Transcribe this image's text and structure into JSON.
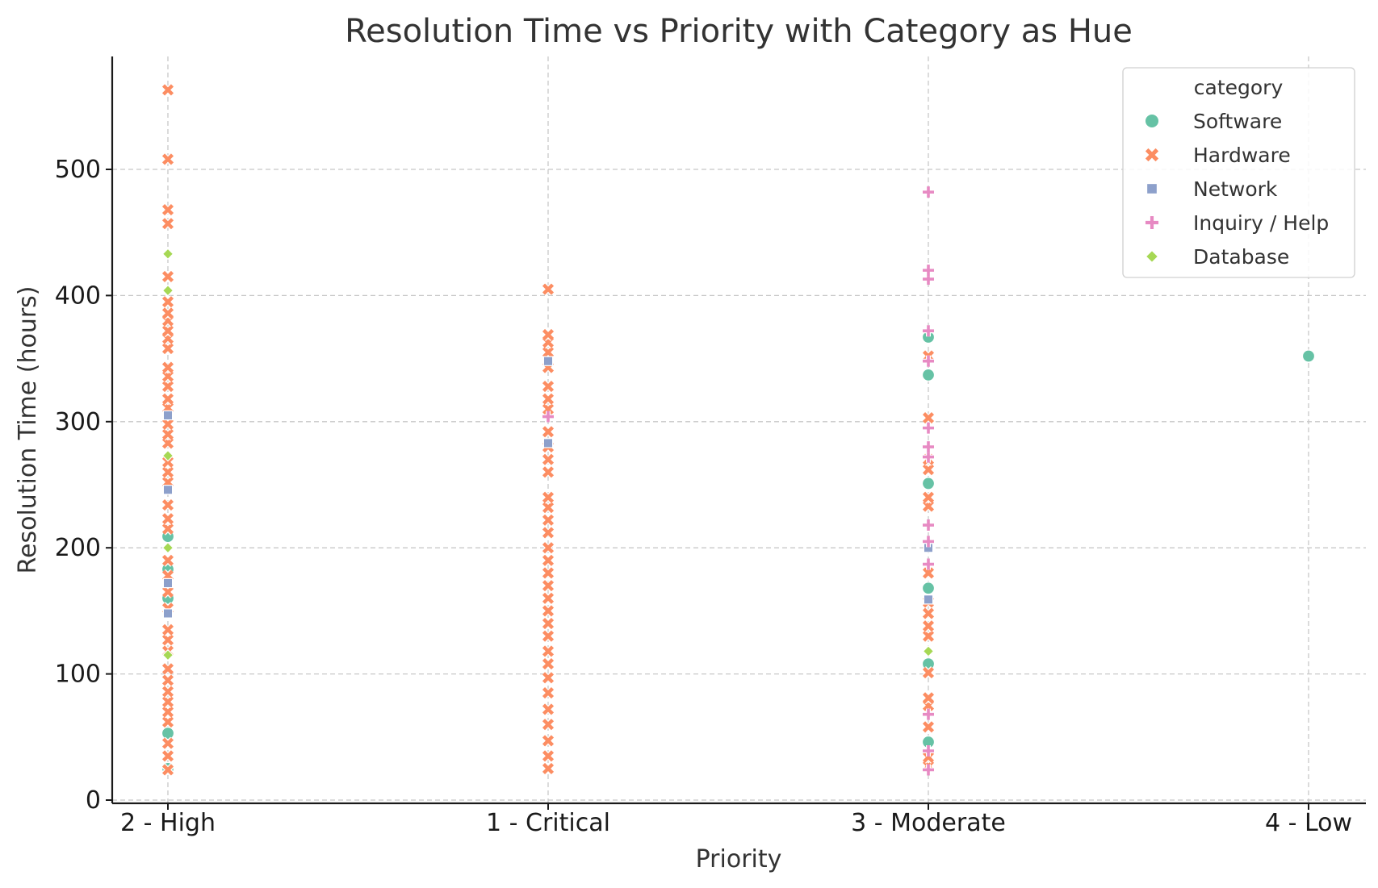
{
  "chart_data": {
    "type": "scatter",
    "title": "Resolution Time vs Priority with Category as Hue",
    "xlabel": "Priority",
    "ylabel": "Resolution Time (hours)",
    "x_categories": [
      "2 - High",
      "1 - Critical",
      "3 - Moderate",
      "4 - Low"
    ],
    "y_ticks": [
      0,
      100,
      200,
      300,
      400,
      500
    ],
    "ylim": [
      -5,
      590
    ],
    "grid": true,
    "legend": {
      "title": "category",
      "placement": "top-right"
    },
    "series": [
      {
        "name": "Software",
        "marker": "circle",
        "color": "#66c2a5",
        "points": [
          {
            "x": "2 - High",
            "y": 25
          },
          {
            "x": "2 - High",
            "y": 53
          },
          {
            "x": "2 - High",
            "y": 160
          },
          {
            "x": "2 - High",
            "y": 183
          },
          {
            "x": "2 - High",
            "y": 209
          },
          {
            "x": "3 - Moderate",
            "y": 46
          },
          {
            "x": "3 - Moderate",
            "y": 108
          },
          {
            "x": "3 - Moderate",
            "y": 168
          },
          {
            "x": "3 - Moderate",
            "y": 251
          },
          {
            "x": "3 - Moderate",
            "y": 337
          },
          {
            "x": "3 - Moderate",
            "y": 367
          },
          {
            "x": "4 - Low",
            "y": 352
          }
        ]
      },
      {
        "name": "Hardware",
        "marker": "x",
        "color": "#fc8d62",
        "points": [
          {
            "x": "2 - High",
            "y": 24
          },
          {
            "x": "2 - High",
            "y": 35
          },
          {
            "x": "2 - High",
            "y": 45
          },
          {
            "x": "2 - High",
            "y": 62
          },
          {
            "x": "2 - High",
            "y": 70
          },
          {
            "x": "2 - High",
            "y": 78
          },
          {
            "x": "2 - High",
            "y": 86
          },
          {
            "x": "2 - High",
            "y": 95
          },
          {
            "x": "2 - High",
            "y": 104
          },
          {
            "x": "2 - High",
            "y": 118
          },
          {
            "x": "2 - High",
            "y": 127
          },
          {
            "x": "2 - High",
            "y": 135
          },
          {
            "x": "2 - High",
            "y": 152
          },
          {
            "x": "2 - High",
            "y": 165
          },
          {
            "x": "2 - High",
            "y": 178
          },
          {
            "x": "2 - High",
            "y": 190
          },
          {
            "x": "2 - High",
            "y": 215
          },
          {
            "x": "2 - High",
            "y": 223
          },
          {
            "x": "2 - High",
            "y": 234
          },
          {
            "x": "2 - High",
            "y": 252
          },
          {
            "x": "2 - High",
            "y": 260
          },
          {
            "x": "2 - High",
            "y": 268
          },
          {
            "x": "2 - High",
            "y": 283
          },
          {
            "x": "2 - High",
            "y": 290
          },
          {
            "x": "2 - High",
            "y": 298
          },
          {
            "x": "2 - High",
            "y": 311
          },
          {
            "x": "2 - High",
            "y": 318
          },
          {
            "x": "2 - High",
            "y": 328
          },
          {
            "x": "2 - High",
            "y": 336
          },
          {
            "x": "2 - High",
            "y": 343
          },
          {
            "x": "2 - High",
            "y": 358
          },
          {
            "x": "2 - High",
            "y": 366
          },
          {
            "x": "2 - High",
            "y": 372
          },
          {
            "x": "2 - High",
            "y": 380
          },
          {
            "x": "2 - High",
            "y": 386
          },
          {
            "x": "2 - High",
            "y": 395
          },
          {
            "x": "2 - High",
            "y": 415
          },
          {
            "x": "2 - High",
            "y": 457
          },
          {
            "x": "2 - High",
            "y": 468
          },
          {
            "x": "2 - High",
            "y": 508
          },
          {
            "x": "2 - High",
            "y": 563
          },
          {
            "x": "1 - Critical",
            "y": 25
          },
          {
            "x": "1 - Critical",
            "y": 35
          },
          {
            "x": "1 - Critical",
            "y": 47
          },
          {
            "x": "1 - Critical",
            "y": 60
          },
          {
            "x": "1 - Critical",
            "y": 72
          },
          {
            "x": "1 - Critical",
            "y": 85
          },
          {
            "x": "1 - Critical",
            "y": 97
          },
          {
            "x": "1 - Critical",
            "y": 108
          },
          {
            "x": "1 - Critical",
            "y": 118
          },
          {
            "x": "1 - Critical",
            "y": 130
          },
          {
            "x": "1 - Critical",
            "y": 140
          },
          {
            "x": "1 - Critical",
            "y": 150
          },
          {
            "x": "1 - Critical",
            "y": 160
          },
          {
            "x": "1 - Critical",
            "y": 170
          },
          {
            "x": "1 - Critical",
            "y": 180
          },
          {
            "x": "1 - Critical",
            "y": 190
          },
          {
            "x": "1 - Critical",
            "y": 200
          },
          {
            "x": "1 - Critical",
            "y": 212
          },
          {
            "x": "1 - Critical",
            "y": 222
          },
          {
            "x": "1 - Critical",
            "y": 232
          },
          {
            "x": "1 - Critical",
            "y": 240
          },
          {
            "x": "1 - Critical",
            "y": 260
          },
          {
            "x": "1 - Critical",
            "y": 270
          },
          {
            "x": "1 - Critical",
            "y": 280
          },
          {
            "x": "1 - Critical",
            "y": 292
          },
          {
            "x": "1 - Critical",
            "y": 310
          },
          {
            "x": "1 - Critical",
            "y": 318
          },
          {
            "x": "1 - Critical",
            "y": 328
          },
          {
            "x": "1 - Critical",
            "y": 343
          },
          {
            "x": "1 - Critical",
            "y": 355
          },
          {
            "x": "1 - Critical",
            "y": 363
          },
          {
            "x": "1 - Critical",
            "y": 369
          },
          {
            "x": "1 - Critical",
            "y": 405
          },
          {
            "x": "3 - Moderate",
            "y": 27
          },
          {
            "x": "3 - Moderate",
            "y": 34
          },
          {
            "x": "3 - Moderate",
            "y": 58
          },
          {
            "x": "3 - Moderate",
            "y": 75
          },
          {
            "x": "3 - Moderate",
            "y": 81
          },
          {
            "x": "3 - Moderate",
            "y": 101
          },
          {
            "x": "3 - Moderate",
            "y": 130
          },
          {
            "x": "3 - Moderate",
            "y": 138
          },
          {
            "x": "3 - Moderate",
            "y": 148
          },
          {
            "x": "3 - Moderate",
            "y": 157
          },
          {
            "x": "3 - Moderate",
            "y": 180
          },
          {
            "x": "3 - Moderate",
            "y": 233
          },
          {
            "x": "3 - Moderate",
            "y": 240
          },
          {
            "x": "3 - Moderate",
            "y": 262
          },
          {
            "x": "3 - Moderate",
            "y": 270
          },
          {
            "x": "3 - Moderate",
            "y": 303
          },
          {
            "x": "3 - Moderate",
            "y": 352
          }
        ]
      },
      {
        "name": "Network",
        "marker": "square",
        "color": "#8da0cb",
        "points": [
          {
            "x": "2 - High",
            "y": 148
          },
          {
            "x": "2 - High",
            "y": 172
          },
          {
            "x": "2 - High",
            "y": 246
          },
          {
            "x": "2 - High",
            "y": 305
          },
          {
            "x": "1 - Critical",
            "y": 283
          },
          {
            "x": "1 - Critical",
            "y": 348
          },
          {
            "x": "3 - Moderate",
            "y": 159
          },
          {
            "x": "3 - Moderate",
            "y": 200
          }
        ]
      },
      {
        "name": "Inquiry / Help",
        "marker": "plus",
        "color": "#e78ac3",
        "points": [
          {
            "x": "1 - Critical",
            "y": 304
          },
          {
            "x": "3 - Moderate",
            "y": 24
          },
          {
            "x": "3 - Moderate",
            "y": 39
          },
          {
            "x": "3 - Moderate",
            "y": 68
          },
          {
            "x": "3 - Moderate",
            "y": 187
          },
          {
            "x": "3 - Moderate",
            "y": 205
          },
          {
            "x": "3 - Moderate",
            "y": 218
          },
          {
            "x": "3 - Moderate",
            "y": 272
          },
          {
            "x": "3 - Moderate",
            "y": 280
          },
          {
            "x": "3 - Moderate",
            "y": 295
          },
          {
            "x": "3 - Moderate",
            "y": 348
          },
          {
            "x": "3 - Moderate",
            "y": 372
          },
          {
            "x": "3 - Moderate",
            "y": 413
          },
          {
            "x": "3 - Moderate",
            "y": 420
          },
          {
            "x": "3 - Moderate",
            "y": 482
          }
        ]
      },
      {
        "name": "Database",
        "marker": "diamond",
        "color": "#a6d854",
        "points": [
          {
            "x": "2 - High",
            "y": 115
          },
          {
            "x": "2 - High",
            "y": 200
          },
          {
            "x": "2 - High",
            "y": 273
          },
          {
            "x": "2 - High",
            "y": 404
          },
          {
            "x": "2 - High",
            "y": 433
          },
          {
            "x": "3 - Moderate",
            "y": 118
          }
        ]
      }
    ]
  }
}
